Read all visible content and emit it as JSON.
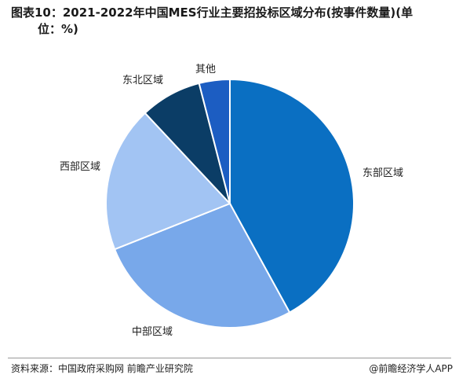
{
  "title_line1": "图表10：2021-2022年中国MES行业主要招投标区域分布(按事件数量)(单",
  "title_line2": "位：%)",
  "chart_data": {
    "type": "pie",
    "title": "图表10：2021-2022年中国MES行业主要招投标区域分布(按事件数量)(单位：%)",
    "unit": "%",
    "slices": [
      {
        "label": "东部区域",
        "value": 42,
        "color": "#0a6fc2"
      },
      {
        "label": "中部区域",
        "value": 27,
        "color": "#78a8ea"
      },
      {
        "label": "西部区域",
        "value": 19,
        "color": "#a2c4f3"
      },
      {
        "label": "东北区域",
        "value": 8,
        "color": "#0b3d66"
      },
      {
        "label": "其他",
        "value": 4,
        "color": "#1c5dc2"
      }
    ],
    "start_angle_deg": 0,
    "direction": "clockwise",
    "legend": "none"
  },
  "footer": {
    "source": "资料来源：中国政府采购网 前瞻产业研究院",
    "publisher": "@前瞻经济学人APP"
  }
}
